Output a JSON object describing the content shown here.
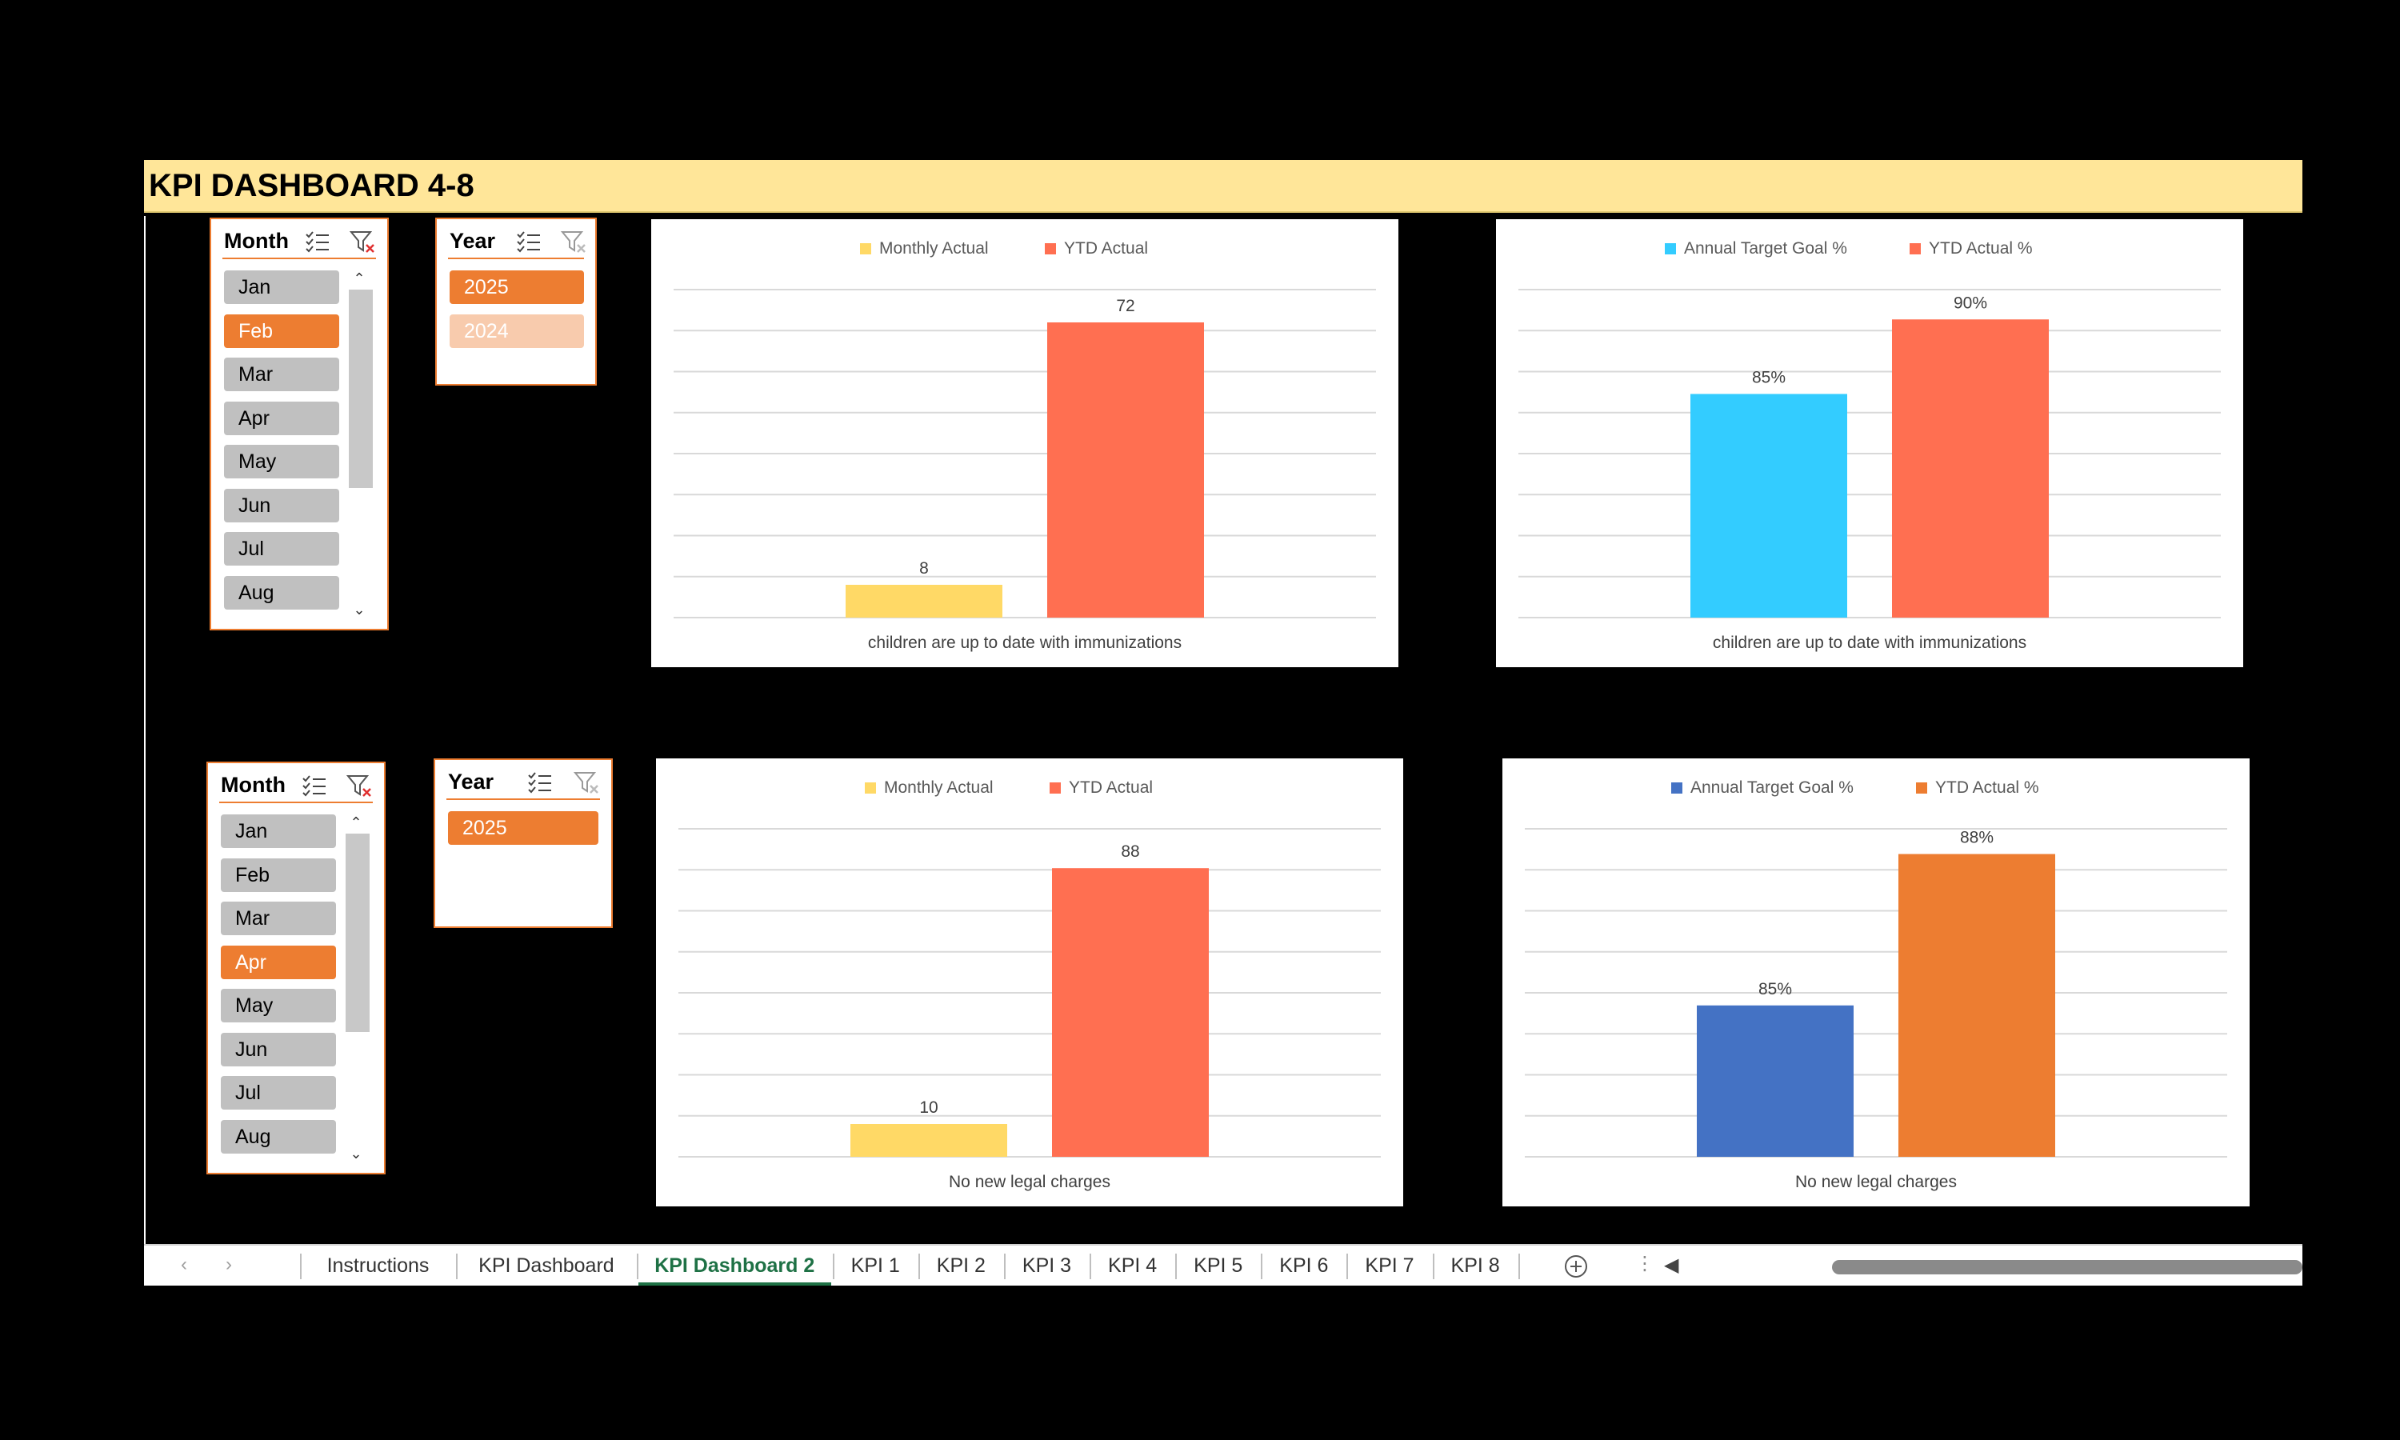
{
  "title": "KPI DASHBOARD 4-8",
  "slicers": {
    "month_top": {
      "title": "Month",
      "items": [
        "Jan",
        "Feb",
        "Mar",
        "Apr",
        "May",
        "Jun",
        "Jul",
        "Aug"
      ],
      "selected": "Feb"
    },
    "year_top": {
      "title": "Year",
      "items": [
        "2025",
        "2024"
      ],
      "selected": "2025"
    },
    "month_bottom": {
      "title": "Month",
      "items": [
        "Jan",
        "Feb",
        "Mar",
        "Apr",
        "May",
        "Jun",
        "Jul",
        "Aug"
      ],
      "selected": "Apr"
    },
    "year_bottom": {
      "title": "Year",
      "items": [
        "2025"
      ],
      "selected": "2025"
    }
  },
  "charts": {
    "kpi4_count": {
      "legend": [
        "Monthly Actual",
        "YTD Actual"
      ],
      "category": "children are up to date with immunizations",
      "labels": [
        "8",
        "72"
      ]
    },
    "kpi4_pct": {
      "legend": [
        "Annual Target Goal %",
        "YTD Actual %"
      ],
      "category": "children are up to date with immunizations",
      "labels": [
        "85%",
        "90%"
      ]
    },
    "kpi5_count": {
      "legend": [
        "Monthly Actual",
        "YTD Actual"
      ],
      "category": "No new legal charges",
      "labels": [
        "10",
        "88"
      ]
    },
    "kpi5_pct": {
      "legend": [
        "Annual Target Goal %",
        "YTD Actual %"
      ],
      "category": "No new legal charges",
      "labels": [
        "85%",
        "88%"
      ]
    }
  },
  "chart_data": [
    {
      "type": "bar",
      "categories": [
        "children are up to date with immunizations"
      ],
      "series": [
        {
          "name": "Monthly Actual",
          "values": [
            8
          ],
          "color": "#FFD966"
        },
        {
          "name": "YTD Actual",
          "values": [
            72
          ],
          "color": "#FF6F51"
        }
      ],
      "ylim": [
        0,
        80
      ],
      "grid": true,
      "legend": "top"
    },
    {
      "type": "bar",
      "categories": [
        "children are up to date with immunizations"
      ],
      "series": [
        {
          "name": "Annual Target Goal %",
          "values": [
            85
          ],
          "color": "#33CCFF"
        },
        {
          "name": "YTD Actual %",
          "values": [
            90
          ],
          "color": "#FF6F51"
        }
      ],
      "ylim": [
        70,
        92
      ],
      "grid": true,
      "legend": "top"
    },
    {
      "type": "bar",
      "categories": [
        "No new legal charges"
      ],
      "series": [
        {
          "name": "Monthly Actual",
          "values": [
            10
          ],
          "color": "#FFD966"
        },
        {
          "name": "YTD Actual",
          "values": [
            88
          ],
          "color": "#FF6F51"
        }
      ],
      "ylim": [
        0,
        100
      ],
      "grid": true,
      "legend": "top"
    },
    {
      "type": "bar",
      "categories": [
        "No new legal charges"
      ],
      "series": [
        {
          "name": "Annual Target Goal %",
          "values": [
            85
          ],
          "color": "#4472C4"
        },
        {
          "name": "YTD Actual %",
          "values": [
            88
          ],
          "color": "#ED7D31"
        }
      ],
      "ylim": [
        82,
        88.5
      ],
      "grid": true,
      "legend": "top"
    }
  ],
  "tabs": [
    "Instructions",
    "KPI Dashboard",
    "KPI Dashboard 2",
    "KPI 1",
    "KPI 2",
    "KPI 3",
    "KPI 4",
    "KPI 5",
    "KPI 6",
    "KPI 7",
    "KPI 8"
  ],
  "active_tab": "KPI Dashboard 2",
  "icons": {
    "multi_select": "multi-select-icon",
    "clear_filter": "clear-filter-icon",
    "add_sheet": "plus-circle-icon"
  }
}
